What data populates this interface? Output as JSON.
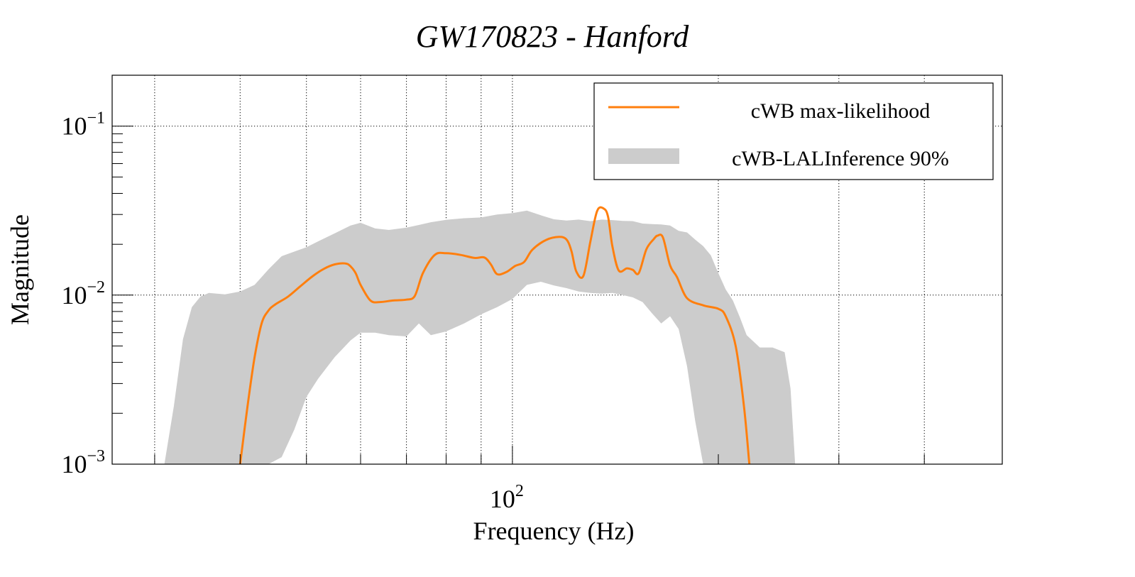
{
  "chart_data": {
    "type": "line",
    "title": "GW170823 - Hanford",
    "xlabel": "Frequency (Hz)",
    "ylabel": "Magnitude",
    "xscale": "log",
    "yscale": "log",
    "xlim": [
      26,
      520
    ],
    "ylim": [
      0.001,
      0.2
    ],
    "grid": true,
    "legend_position": "top-right",
    "x_tick_labels": [
      {
        "value": 100,
        "base": "10",
        "exp": "2"
      }
    ],
    "y_tick_labels": [
      {
        "value": 0.1,
        "base": "10",
        "exp": "−1"
      },
      {
        "value": 0.01,
        "base": "10",
        "exp": "−2"
      },
      {
        "value": 0.001,
        "base": "10",
        "exp": "−3"
      }
    ],
    "colors": {
      "line": "#ff7f0e",
      "band": "#cccccc"
    },
    "series": [
      {
        "name": "cWB max-likelihood",
        "kind": "line",
        "x": [
          40,
          41,
          42,
          43,
          44,
          45,
          47,
          49,
          51,
          53,
          55,
          57,
          58,
          59,
          60,
          62,
          64,
          67,
          70,
          72,
          74,
          77,
          80,
          84,
          88,
          91,
          93,
          95,
          98,
          101,
          104,
          107,
          112,
          117,
          120,
          122,
          124,
          127,
          130,
          133,
          136,
          138,
          140,
          143,
          147,
          150,
          153,
          157,
          161,
          163,
          166,
          170,
          174,
          180,
          190,
          200,
          205,
          212,
          218,
          222
        ],
        "y": [
          0.001,
          0.0022,
          0.0043,
          0.0068,
          0.0081,
          0.0088,
          0.0098,
          0.0113,
          0.0129,
          0.0143,
          0.0152,
          0.0154,
          0.0148,
          0.0135,
          0.0115,
          0.0093,
          0.0091,
          0.0093,
          0.0094,
          0.0099,
          0.0135,
          0.0173,
          0.0177,
          0.0173,
          0.0166,
          0.0167,
          0.0152,
          0.0133,
          0.0137,
          0.0149,
          0.0157,
          0.0186,
          0.0212,
          0.0221,
          0.0213,
          0.0182,
          0.0138,
          0.013,
          0.0207,
          0.0315,
          0.0325,
          0.029,
          0.0195,
          0.014,
          0.0144,
          0.0141,
          0.0135,
          0.0187,
          0.0215,
          0.0225,
          0.0219,
          0.015,
          0.0128,
          0.0096,
          0.0087,
          0.0083,
          0.0075,
          0.005,
          0.0022,
          0.001
        ]
      },
      {
        "name": "cWB-LALInference 90%",
        "kind": "band",
        "x": [
          31,
          32,
          33,
          34,
          35,
          36,
          38,
          40,
          42,
          44,
          46,
          48,
          50,
          52,
          55,
          58,
          60,
          63,
          66,
          70,
          73,
          76,
          80,
          85,
          90,
          95,
          100,
          105,
          110,
          115,
          120,
          125,
          130,
          135,
          140,
          145,
          150,
          155,
          160,
          165,
          170,
          175,
          180,
          185,
          190,
          195,
          200,
          205,
          210,
          215,
          220,
          230,
          240,
          250,
          255,
          259
        ],
        "lower": [
          0.001,
          0.001,
          0.001,
          0.001,
          0.001,
          0.001,
          0.001,
          0.001,
          0.001,
          0.001,
          0.0011,
          0.0016,
          0.0025,
          0.0032,
          0.0043,
          0.0054,
          0.006,
          0.006,
          0.0058,
          0.0057,
          0.0068,
          0.0058,
          0.0061,
          0.0068,
          0.0077,
          0.0085,
          0.0095,
          0.0115,
          0.012,
          0.0114,
          0.011,
          0.0105,
          0.0103,
          0.0102,
          0.0103,
          0.01,
          0.0097,
          0.0091,
          0.0078,
          0.0068,
          0.0075,
          0.0063,
          0.0038,
          0.0018,
          0.001,
          0.001,
          0.001,
          0.001,
          0.001,
          0.001,
          0.001,
          0.001,
          0.001,
          0.001,
          0.001,
          0.001
        ],
        "upper": [
          0.001,
          0.0022,
          0.0055,
          0.0085,
          0.0098,
          0.0103,
          0.0101,
          0.0105,
          0.0115,
          0.0142,
          0.017,
          0.0181,
          0.0192,
          0.0208,
          0.0232,
          0.0258,
          0.0268,
          0.0248,
          0.0243,
          0.0251,
          0.026,
          0.027,
          0.0279,
          0.0285,
          0.0288,
          0.03,
          0.0306,
          0.0316,
          0.0297,
          0.0281,
          0.0276,
          0.028,
          0.0274,
          0.028,
          0.0278,
          0.0275,
          0.0274,
          0.0265,
          0.0263,
          0.0262,
          0.0258,
          0.024,
          0.0235,
          0.0213,
          0.0195,
          0.0172,
          0.0135,
          0.0108,
          0.0093,
          0.0074,
          0.0058,
          0.0049,
          0.0049,
          0.0046,
          0.0028,
          0.001
        ]
      }
    ]
  }
}
